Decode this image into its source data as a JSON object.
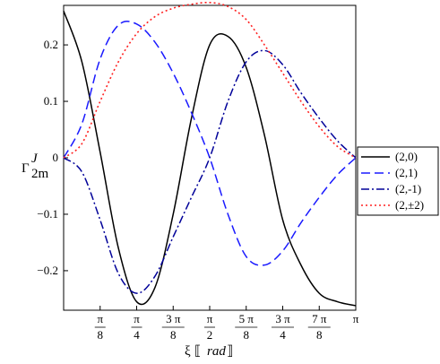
{
  "chart_data": {
    "type": "line",
    "title": "",
    "xlabel": "ξ ⟦rad⟧",
    "ylabel": "Γ^J_2m",
    "ylabel_parts": {
      "base": "Γ",
      "sup": "J",
      "sub": "2m"
    },
    "xlabel_parts": {
      "symbol": "ξ",
      "open": "⟦",
      "unit": "rad",
      "close": "⟧"
    },
    "xlim": [
      0,
      3.1416
    ],
    "ylim": [
      -0.27,
      0.27
    ],
    "grid": false,
    "legend_position": "right",
    "x_ticks": [
      {
        "value": 0.3927,
        "num": "π",
        "den": "8"
      },
      {
        "value": 0.7854,
        "num": "π",
        "den": "4"
      },
      {
        "value": 1.1781,
        "num": "3 π",
        "den": "8"
      },
      {
        "value": 1.5708,
        "num": "π",
        "den": "2"
      },
      {
        "value": 1.9635,
        "num": "5 π",
        "den": "8"
      },
      {
        "value": 2.3562,
        "num": "3 π",
        "den": "4"
      },
      {
        "value": 2.7489,
        "num": "7 π",
        "den": "8"
      },
      {
        "value": 3.1416,
        "num": "π",
        "den": ""
      }
    ],
    "y_ticks": [
      {
        "value": 0.2,
        "label": "0.2"
      },
      {
        "value": 0.1,
        "label": "0.1"
      },
      {
        "value": 0,
        "label": "0"
      },
      {
        "value": -0.1,
        "label": "−0.1"
      },
      {
        "value": -0.2,
        "label": "−0.2"
      }
    ],
    "series": [
      {
        "name": "(2,0)",
        "color": "#000000",
        "dash": "solid",
        "x": [
          0,
          0.1963,
          0.3927,
          0.589,
          0.7854,
          0.9817,
          1.1781,
          1.3744,
          1.5708,
          1.7671,
          1.9635,
          2.1598,
          2.3562,
          2.5525,
          2.7489,
          2.9452,
          3.1416
        ],
        "y": [
          0.26,
          0.17,
          0.01,
          -0.16,
          -0.255,
          -0.23,
          -0.1,
          0.07,
          0.2,
          0.215,
          0.16,
          0.04,
          -0.11,
          -0.19,
          -0.24,
          -0.255,
          -0.262
        ]
      },
      {
        "name": "(2,1)",
        "color": "#1a1aff",
        "dash": "long-dash",
        "x": [
          0,
          0.1963,
          0.3927,
          0.589,
          0.7854,
          0.9817,
          1.1781,
          1.3744,
          1.5708,
          1.7671,
          1.9635,
          2.1598,
          2.3562,
          2.5525,
          2.7489,
          2.9452,
          3.1416
        ],
        "y": [
          0,
          0.06,
          0.175,
          0.235,
          0.237,
          0.205,
          0.15,
          0.08,
          0.0,
          -0.1,
          -0.175,
          -0.19,
          -0.165,
          -0.115,
          -0.07,
          -0.03,
          0
        ]
      },
      {
        "name": "(2,-1)",
        "color": "#000099",
        "dash": "dash-dot",
        "x": [
          0,
          0.1963,
          0.3927,
          0.589,
          0.7854,
          0.9817,
          1.1781,
          1.3744,
          1.5708,
          1.7671,
          1.9635,
          2.1598,
          2.3562,
          2.5525,
          2.7489,
          2.9452,
          3.1416
        ],
        "y": [
          0,
          -0.025,
          -0.11,
          -0.205,
          -0.24,
          -0.21,
          -0.14,
          -0.07,
          0.0,
          0.1,
          0.17,
          0.19,
          0.165,
          0.115,
          0.07,
          0.03,
          0
        ]
      },
      {
        "name": "(2,±2)",
        "color": "#ff2020",
        "dash": "dotted",
        "x": [
          0,
          0.1963,
          0.3927,
          0.589,
          0.7854,
          0.9817,
          1.1781,
          1.3744,
          1.5708,
          1.7671,
          1.9635,
          2.1598,
          2.3562,
          2.5525,
          2.7489,
          2.9452,
          3.1416
        ],
        "y": [
          0,
          0.025,
          0.1,
          0.17,
          0.22,
          0.25,
          0.265,
          0.272,
          0.275,
          0.268,
          0.245,
          0.2,
          0.15,
          0.1,
          0.055,
          0.02,
          0
        ]
      }
    ]
  }
}
